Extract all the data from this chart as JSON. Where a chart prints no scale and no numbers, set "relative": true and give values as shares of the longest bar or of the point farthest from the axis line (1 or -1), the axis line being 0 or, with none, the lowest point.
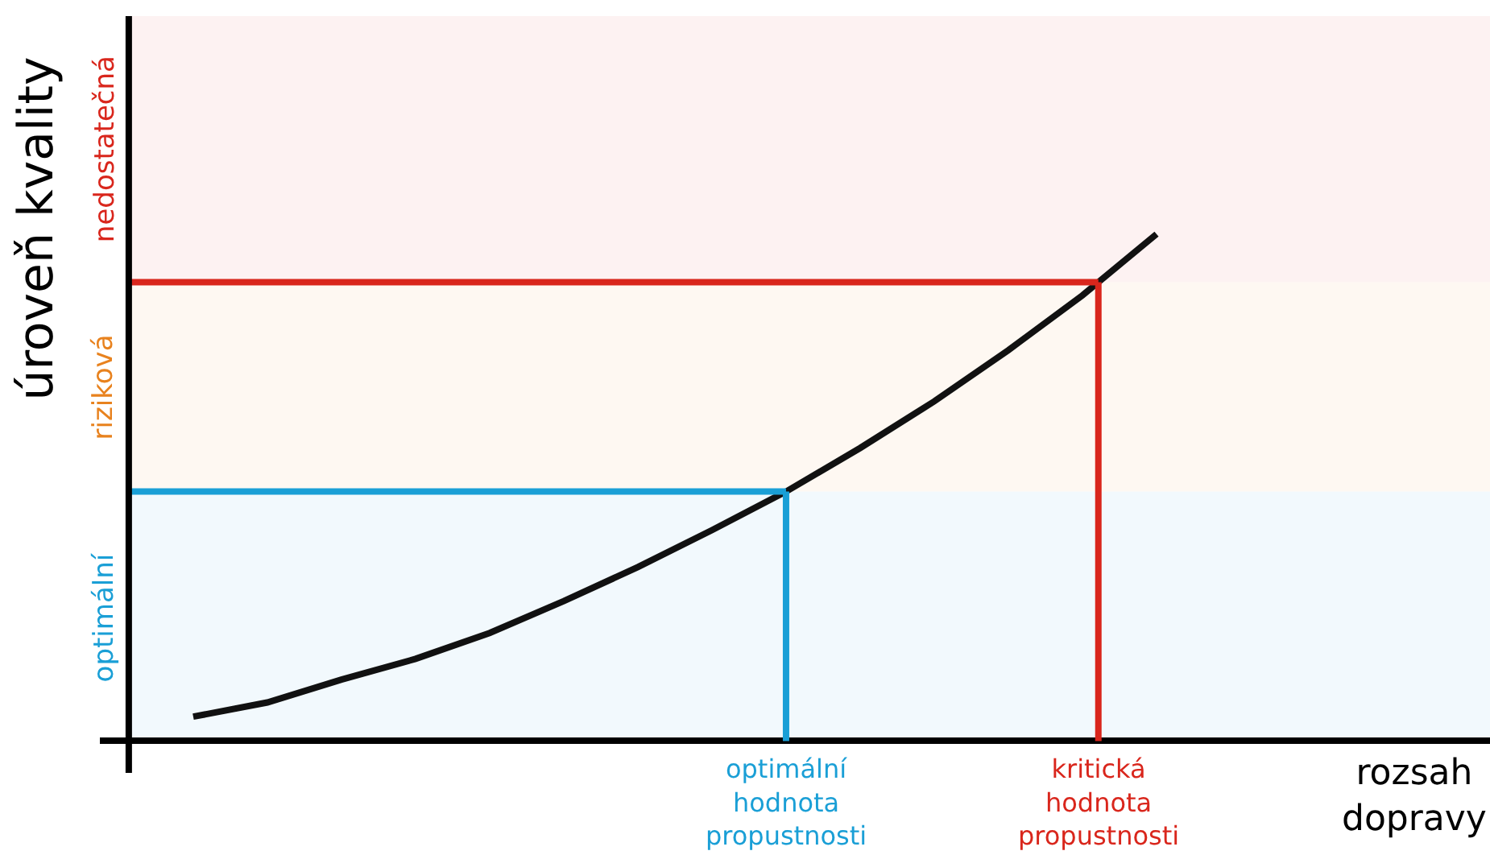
{
  "chart_data": {
    "type": "line",
    "relative": true,
    "xlabel": "rozsah dopravy",
    "ylabel": "úroveň kvality",
    "marker": "none",
    "line_style": "solid",
    "categories": [
      null,
      null,
      null,
      null,
      null,
      null,
      null,
      null,
      null,
      null,
      null,
      null,
      null,
      null
    ],
    "series": [
      {
        "color": "#111111",
        "values": [
          0.048,
          0.076,
          0.121,
          0.162,
          0.213,
          0.276,
          0.343,
          0.416,
          0.492,
          0.578,
          0.67,
          0.771,
          0.879,
          1.0
        ]
      }
    ],
    "ref_lines": [
      {
        "axis": "y",
        "value": 0.492,
        "label": "optimální hodnota propustnosti",
        "color": "#1a9fd6"
      },
      {
        "axis": "y",
        "value": 0.905,
        "label": "kritická hodnota propustnosti",
        "color": "#d9261c"
      }
    ],
    "bands": [
      {
        "axis": "y",
        "from": 0,
        "to": 0.492,
        "label": "optimální",
        "color": "#1a9fd6"
      },
      {
        "axis": "y",
        "from": 0.492,
        "to": 0.905,
        "label": "riziková",
        "color": "#e8821e"
      },
      {
        "axis": "y",
        "from": 0.905,
        "to": 1.43,
        "label": "nedostatečná",
        "color": "#d9261c"
      }
    ]
  }
}
